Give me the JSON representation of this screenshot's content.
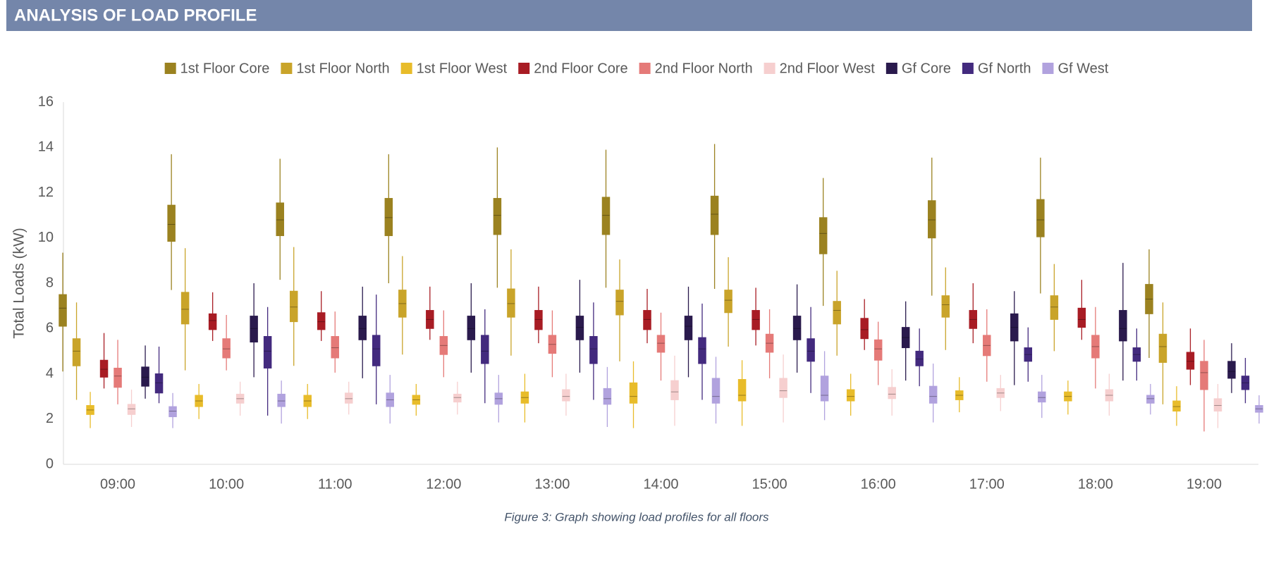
{
  "header": {
    "title": "ANALYSIS OF LOAD PROFILE"
  },
  "chart_data": {
    "type": "box",
    "ylabel": "Total Loads (kW)",
    "caption": "Figure 3: Graph showing load profiles for all floors",
    "ylim": [
      0,
      16
    ],
    "yticks": [
      0,
      2,
      4,
      6,
      8,
      10,
      12,
      14,
      16
    ],
    "grid": false,
    "legend": "top",
    "categories": [
      "09:00",
      "10:00",
      "11:00",
      "12:00",
      "13:00",
      "14:00",
      "15:00",
      "16:00",
      "17:00",
      "18:00",
      "19:00"
    ],
    "series": [
      {
        "name": "1st Floor Core",
        "color": "#9b8220",
        "values": [
          [
            4.1,
            6.1,
            6.9,
            7.5,
            9.35
          ],
          [
            7.7,
            9.85,
            10.6,
            11.45,
            13.7
          ],
          [
            8.15,
            10.1,
            10.8,
            11.55,
            13.5
          ],
          [
            8.0,
            10.1,
            10.9,
            11.75,
            13.7
          ],
          [
            7.8,
            10.15,
            11.0,
            11.75,
            14.0
          ],
          [
            7.8,
            10.15,
            11.0,
            11.8,
            13.9
          ],
          [
            7.75,
            10.15,
            11.05,
            11.85,
            14.15
          ],
          [
            7.0,
            9.3,
            10.2,
            10.9,
            12.65
          ],
          [
            7.45,
            10.0,
            10.8,
            11.65,
            13.55
          ],
          [
            7.55,
            10.05,
            10.8,
            11.7,
            13.55
          ],
          [
            4.7,
            6.65,
            7.3,
            7.95,
            9.5
          ]
        ]
      },
      {
        "name": "1st Floor North",
        "color": "#c9a42a",
        "values": [
          [
            2.85,
            4.35,
            5.0,
            5.55,
            7.15
          ],
          [
            4.15,
            6.2,
            6.85,
            7.6,
            9.55
          ],
          [
            4.35,
            6.3,
            6.95,
            7.65,
            9.6
          ],
          [
            4.85,
            6.5,
            7.1,
            7.7,
            9.2
          ],
          [
            4.8,
            6.5,
            7.1,
            7.75,
            9.5
          ],
          [
            4.55,
            6.6,
            7.2,
            7.7,
            9.05
          ],
          [
            5.2,
            6.7,
            7.25,
            7.7,
            9.15
          ],
          [
            4.8,
            6.2,
            6.8,
            7.2,
            8.55
          ],
          [
            5.05,
            6.5,
            7.05,
            7.45,
            8.7
          ],
          [
            5.0,
            6.4,
            6.95,
            7.45,
            8.85
          ],
          [
            2.65,
            4.5,
            5.2,
            5.75,
            7.15
          ]
        ]
      },
      {
        "name": "1st Floor West",
        "color": "#e8bc2a",
        "values": [
          [
            1.6,
            2.2,
            2.4,
            2.6,
            3.2
          ],
          [
            2.0,
            2.55,
            2.8,
            3.05,
            3.55
          ],
          [
            2.0,
            2.55,
            2.8,
            3.05,
            3.55
          ],
          [
            2.15,
            2.65,
            2.85,
            3.05,
            3.55
          ],
          [
            1.85,
            2.7,
            2.95,
            3.2,
            4.0
          ],
          [
            1.6,
            2.7,
            3.0,
            3.6,
            4.55
          ],
          [
            1.7,
            2.8,
            3.05,
            3.75,
            4.6
          ],
          [
            2.15,
            2.8,
            3.0,
            3.3,
            4.0
          ],
          [
            2.3,
            2.85,
            3.05,
            3.25,
            3.85
          ],
          [
            2.2,
            2.8,
            3.0,
            3.2,
            3.7
          ],
          [
            1.7,
            2.35,
            2.55,
            2.8,
            3.45
          ]
        ]
      },
      {
        "name": "2nd Floor Core",
        "color": "#a81c24",
        "values": [
          [
            3.35,
            3.85,
            4.2,
            4.6,
            5.8
          ],
          [
            5.45,
            5.95,
            6.35,
            6.65,
            7.6
          ],
          [
            5.45,
            5.95,
            6.3,
            6.7,
            7.65
          ],
          [
            5.5,
            6.0,
            6.4,
            6.8,
            7.85
          ],
          [
            5.35,
            5.95,
            6.4,
            6.8,
            7.85
          ],
          [
            5.35,
            5.95,
            6.4,
            6.8,
            7.75
          ],
          [
            5.25,
            5.95,
            6.4,
            6.8,
            7.8
          ],
          [
            5.05,
            5.55,
            5.95,
            6.45,
            7.3
          ],
          [
            5.35,
            6.0,
            6.4,
            6.8,
            8.0
          ],
          [
            5.5,
            6.05,
            6.4,
            6.9,
            8.15
          ],
          [
            3.5,
            4.2,
            4.55,
            4.95,
            6.0
          ]
        ]
      },
      {
        "name": "2nd Floor North",
        "color": "#e57a78",
        "values": [
          [
            2.65,
            3.4,
            3.9,
            4.25,
            5.5
          ],
          [
            4.15,
            4.7,
            5.1,
            5.55,
            6.6
          ],
          [
            4.05,
            4.7,
            5.15,
            5.65,
            6.75
          ],
          [
            3.85,
            4.85,
            5.25,
            5.65,
            6.8
          ],
          [
            3.85,
            4.9,
            5.3,
            5.7,
            6.8
          ],
          [
            3.7,
            4.95,
            5.35,
            5.7,
            6.7
          ],
          [
            3.8,
            4.95,
            5.35,
            5.75,
            6.85
          ],
          [
            3.5,
            4.6,
            5.1,
            5.5,
            6.3
          ],
          [
            3.65,
            4.8,
            5.25,
            5.7,
            6.85
          ],
          [
            3.35,
            4.7,
            5.2,
            5.7,
            6.95
          ],
          [
            1.45,
            3.3,
            4.05,
            4.55,
            5.5
          ]
        ]
      },
      {
        "name": "2nd Floor West",
        "color": "#f6cfcf",
        "values": [
          [
            1.65,
            2.2,
            2.45,
            2.65,
            3.3
          ],
          [
            2.15,
            2.7,
            2.9,
            3.1,
            3.65
          ],
          [
            2.2,
            2.7,
            2.9,
            3.15,
            3.65
          ],
          [
            2.2,
            2.75,
            2.95,
            3.1,
            3.65
          ],
          [
            2.15,
            2.8,
            3.0,
            3.3,
            4.0
          ],
          [
            1.7,
            2.85,
            3.2,
            3.7,
            4.8
          ],
          [
            1.85,
            2.95,
            3.25,
            3.8,
            4.85
          ],
          [
            2.15,
            2.9,
            3.1,
            3.4,
            4.2
          ],
          [
            2.35,
            2.95,
            3.15,
            3.35,
            3.95
          ],
          [
            2.15,
            2.8,
            3.05,
            3.3,
            4.0
          ],
          [
            1.6,
            2.35,
            2.6,
            2.9,
            3.55
          ]
        ]
      },
      {
        "name": "Gf Core",
        "color": "#2a1a4d",
        "values": [
          [
            2.9,
            3.45,
            3.85,
            4.3,
            5.25
          ],
          [
            3.85,
            5.4,
            6.0,
            6.55,
            8.0
          ],
          [
            3.8,
            5.5,
            6.0,
            6.55,
            7.85
          ],
          [
            4.05,
            5.5,
            6.0,
            6.55,
            8.0
          ],
          [
            4.05,
            5.5,
            6.05,
            6.55,
            8.15
          ],
          [
            3.85,
            5.5,
            6.1,
            6.55,
            7.85
          ],
          [
            4.05,
            5.5,
            6.0,
            6.55,
            7.95
          ],
          [
            3.7,
            5.15,
            5.6,
            6.05,
            7.2
          ],
          [
            3.5,
            5.45,
            6.05,
            6.65,
            7.65
          ],
          [
            3.7,
            5.45,
            6.0,
            6.8,
            8.9
          ],
          [
            3.15,
            3.8,
            4.1,
            4.55,
            5.35
          ]
        ]
      },
      {
        "name": "Gf North",
        "color": "#432a7e",
        "values": [
          [
            2.7,
            3.15,
            3.6,
            4.0,
            5.2
          ],
          [
            2.15,
            4.25,
            5.0,
            5.65,
            6.95
          ],
          [
            2.65,
            4.35,
            5.1,
            5.7,
            7.5
          ],
          [
            2.7,
            4.45,
            5.0,
            5.7,
            6.85
          ],
          [
            2.85,
            4.45,
            5.1,
            5.65,
            7.15
          ],
          [
            2.85,
            4.45,
            5.1,
            5.6,
            7.1
          ],
          [
            3.15,
            4.55,
            5.0,
            5.55,
            6.95
          ],
          [
            3.45,
            4.35,
            4.65,
            5.0,
            6.0
          ],
          [
            3.65,
            4.55,
            4.85,
            5.15,
            6.05
          ],
          [
            3.7,
            4.55,
            4.85,
            5.15,
            6.0
          ],
          [
            2.7,
            3.3,
            3.6,
            3.9,
            4.7
          ]
        ]
      },
      {
        "name": "Gf West",
        "color": "#b1a2de",
        "values": [
          [
            1.6,
            2.1,
            2.35,
            2.55,
            3.15
          ],
          [
            1.8,
            2.55,
            2.8,
            3.1,
            3.7
          ],
          [
            1.8,
            2.55,
            2.85,
            3.15,
            3.95
          ],
          [
            1.85,
            2.65,
            2.9,
            3.15,
            3.95
          ],
          [
            1.65,
            2.65,
            2.9,
            3.35,
            4.3
          ],
          [
            1.8,
            2.7,
            3.0,
            3.8,
            4.75
          ],
          [
            1.95,
            2.8,
            3.05,
            3.9,
            5.0
          ],
          [
            1.85,
            2.7,
            3.0,
            3.45,
            4.45
          ],
          [
            2.05,
            2.75,
            2.95,
            3.2,
            3.95
          ],
          [
            2.2,
            2.7,
            2.9,
            3.05,
            3.55
          ],
          [
            1.8,
            2.3,
            2.45,
            2.6,
            3.05
          ]
        ]
      }
    ]
  }
}
